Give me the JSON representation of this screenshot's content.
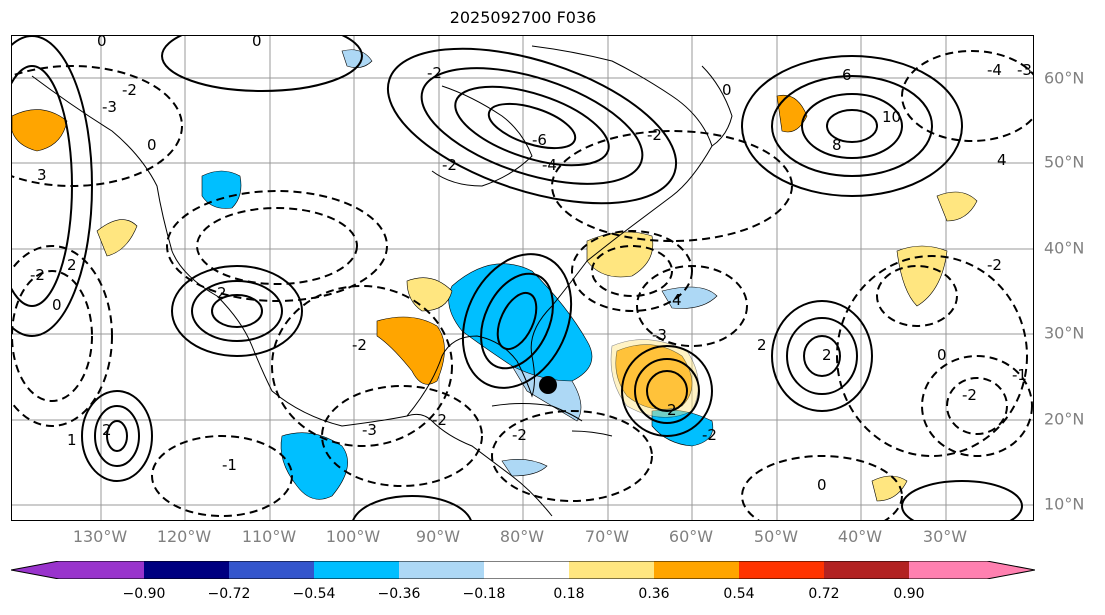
{
  "title": "2025092700 F036",
  "longitude_labels": [
    "130°W",
    "120°W",
    "110°W",
    "100°W",
    "90°W",
    "80°W",
    "70°W",
    "60°W",
    "50°W",
    "40°W",
    "30°W"
  ],
  "latitude_labels": [
    "60°N",
    "50°N",
    "40°N",
    "30°N",
    "20°N",
    "10°N"
  ],
  "colorbar": {
    "colors": [
      "#9933cc",
      "#000080",
      "#3355cc",
      "#00bfff",
      "#add8f5",
      "#ffffff",
      "#ffe680",
      "#ffa500",
      "#ff3300",
      "#b22222",
      "#ff80b0"
    ],
    "tick_labels": [
      "−0.90",
      "−0.72",
      "−0.54",
      "−0.36",
      "−0.18",
      "0.18",
      "0.36",
      "0.54",
      "0.72",
      "0.90"
    ]
  },
  "contour_labels": [
    "0",
    "-2",
    "-3",
    "0",
    "0",
    "-2",
    "-4",
    "-6",
    "-2",
    "-2",
    "2",
    "3",
    "-3",
    "-2",
    "-1",
    "-2",
    "2",
    "1",
    "0",
    "-2",
    "-3",
    "-1",
    "-2",
    "0",
    "2",
    "4",
    "8",
    "10",
    "6",
    "-4",
    "-3",
    "-2",
    "0",
    "2",
    "2",
    "-2",
    "4",
    "2",
    "0",
    "-2"
  ],
  "storm_marker": "black-dot"
}
